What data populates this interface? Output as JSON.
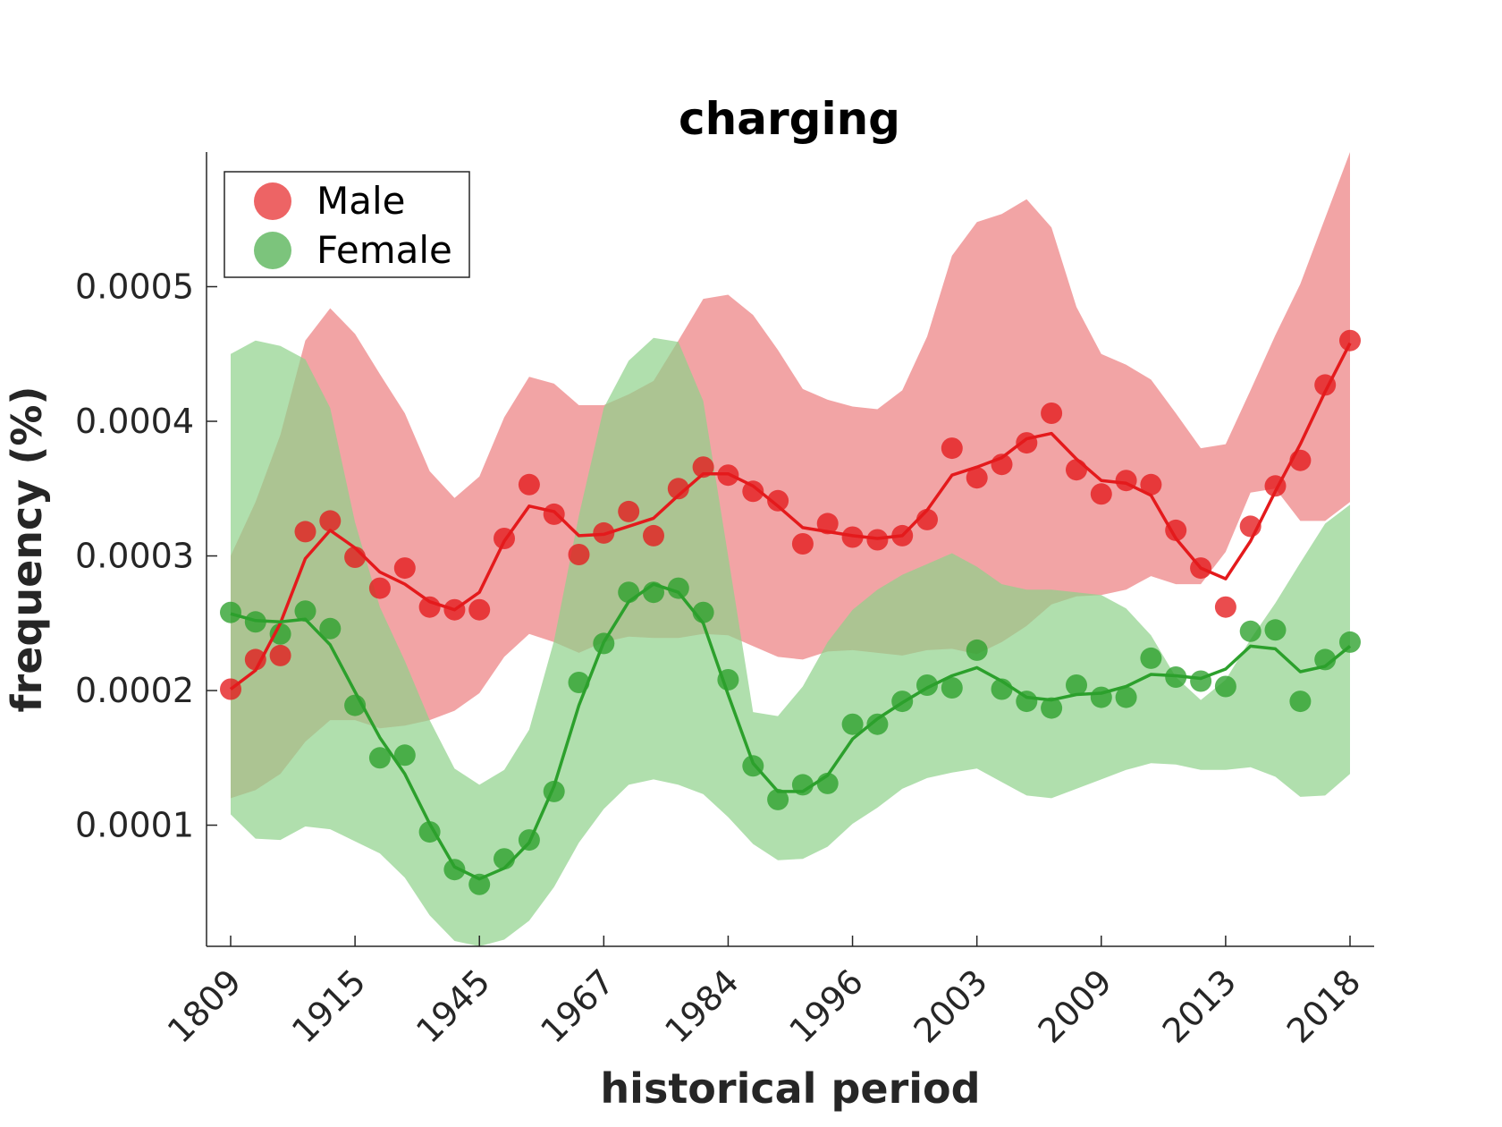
{
  "chart_data": {
    "type": "line",
    "title": "charging",
    "xlabel": "historical period",
    "ylabel": "frequency (%)",
    "x_tick_labels": [
      "1809",
      "1915",
      "1945",
      "1967",
      "1984",
      "1996",
      "2003",
      "2009",
      "2013",
      "2018"
    ],
    "x_tick_positions": [
      0,
      5,
      10,
      15,
      20,
      25,
      30,
      35,
      40,
      45
    ],
    "y_ticks": [
      0.0001,
      0.0002,
      0.0003,
      0.0004,
      0.0005
    ],
    "y_tick_labels": [
      "0.0001",
      "0.0002",
      "0.0003",
      "0.0004",
      "0.0005"
    ],
    "ylim": [
      1e-05,
      0.0006
    ],
    "xlim": [
      -1,
      46
    ],
    "legend_position": "top-left",
    "grid": false,
    "series": [
      {
        "name": "Male",
        "color": "#e41a1c",
        "band_color": "#ee8b8c",
        "points": [
          0.000201,
          0.000223,
          0.000226,
          0.000318,
          0.000326,
          0.000299,
          0.000276,
          0.000291,
          0.000262,
          0.00026,
          0.00026,
          0.000313,
          0.000353,
          0.000331,
          0.000301,
          0.000317,
          0.000333,
          0.000315,
          0.00035,
          0.000366,
          0.00036,
          0.000348,
          0.000341,
          0.000309,
          0.000324,
          0.000314,
          0.000312,
          0.000315,
          0.000327,
          0.00038,
          0.000358,
          0.000368,
          0.000384,
          0.000406,
          0.000364,
          0.000346,
          0.000356,
          0.000353,
          0.000319,
          0.000291,
          0.000262,
          0.000322,
          0.000352,
          0.000371,
          0.000427,
          0.00046
        ],
        "smooth": [
          0.000201,
          0.000215,
          0.00025,
          0.000298,
          0.000319,
          0.000306,
          0.000288,
          0.000279,
          0.000266,
          0.00026,
          0.000273,
          0.000311,
          0.000337,
          0.000333,
          0.000315,
          0.000316,
          0.000322,
          0.000328,
          0.000345,
          0.000361,
          0.000361,
          0.000352,
          0.000337,
          0.000321,
          0.000318,
          0.000315,
          0.000313,
          0.000315,
          0.000334,
          0.00036,
          0.000366,
          0.000373,
          0.000387,
          0.000391,
          0.000372,
          0.000356,
          0.000354,
          0.000345,
          0.000313,
          0.000291,
          0.000283,
          0.000311,
          0.000348,
          0.000383,
          0.000422,
          0.000458
        ],
        "band_upper": [
          0.0003,
          0.00034,
          0.00039,
          0.00046,
          0.000484,
          0.000465,
          0.000435,
          0.000406,
          0.000363,
          0.000343,
          0.000359,
          0.000403,
          0.000433,
          0.000428,
          0.000412,
          0.000412,
          0.00042,
          0.00043,
          0.00046,
          0.000491,
          0.000494,
          0.000479,
          0.000453,
          0.000424,
          0.000416,
          0.000411,
          0.000409,
          0.000423,
          0.000463,
          0.000523,
          0.000548,
          0.000554,
          0.000565,
          0.000544,
          0.000485,
          0.00045,
          0.000442,
          0.000431,
          0.000406,
          0.00038,
          0.000383,
          0.000423,
          0.000464,
          0.000502,
          0.000551,
          0.0006
        ],
        "band_lower": [
          0.00012,
          0.000126,
          0.000138,
          0.000162,
          0.000178,
          0.000178,
          0.000172,
          0.000174,
          0.000178,
          0.000185,
          0.000198,
          0.000225,
          0.000242,
          0.000236,
          0.000228,
          0.000236,
          0.00024,
          0.000239,
          0.000239,
          0.000242,
          0.000241,
          0.000233,
          0.000225,
          0.000223,
          0.000229,
          0.00023,
          0.000228,
          0.000226,
          0.00023,
          0.000231,
          0.000227,
          0.000236,
          0.000248,
          0.000264,
          0.00027,
          0.000271,
          0.000275,
          0.000285,
          0.000279,
          0.000279,
          0.000303,
          0.000347,
          0.00035,
          0.000326,
          0.000326,
          0.00034
        ]
      },
      {
        "name": "Female",
        "color": "#2ca02c",
        "band_color": "#8fd28a",
        "points": [
          0.000258,
          0.000251,
          0.000242,
          0.000259,
          0.000246,
          0.000189,
          0.00015,
          0.000152,
          9.5e-05,
          6.7e-05,
          5.6e-05,
          7.5e-05,
          8.9e-05,
          0.000125,
          0.000206,
          0.000235,
          0.000273,
          0.000273,
          0.000276,
          0.000258,
          0.000208,
          0.000144,
          0.000119,
          0.00013,
          0.000131,
          0.000175,
          0.000175,
          0.000192,
          0.000204,
          0.000202,
          0.00023,
          0.000201,
          0.000192,
          0.000187,
          0.000204,
          0.000195,
          0.000195,
          0.000224,
          0.00021,
          0.000207,
          0.000203,
          0.000244,
          0.000245,
          0.000192,
          0.000223,
          0.000236
        ],
        "smooth": [
          0.000257,
          0.000252,
          0.000251,
          0.000253,
          0.000234,
          0.000199,
          0.000165,
          0.000138,
          0.000101,
          6.9e-05,
          6e-05,
          6.8e-05,
          8.7e-05,
          0.000129,
          0.000189,
          0.000236,
          0.000266,
          0.000279,
          0.000273,
          0.00025,
          0.000197,
          0.000146,
          0.000125,
          0.000125,
          0.000137,
          0.000164,
          0.000179,
          0.000191,
          0.000202,
          0.000211,
          0.000217,
          0.000207,
          0.000195,
          0.000193,
          0.000197,
          0.000198,
          0.000203,
          0.000212,
          0.000211,
          0.000209,
          0.000216,
          0.000233,
          0.000231,
          0.000214,
          0.000218,
          0.000233
        ],
        "band_upper": [
          0.00045,
          0.00046,
          0.000456,
          0.000446,
          0.00041,
          0.000325,
          0.000262,
          0.000222,
          0.000178,
          0.000142,
          0.00013,
          0.000141,
          0.000171,
          0.000237,
          0.00033,
          0.00041,
          0.000445,
          0.000462,
          0.000459,
          0.000415,
          0.0003,
          0.000184,
          0.000181,
          0.000203,
          0.000236,
          0.00026,
          0.000275,
          0.000286,
          0.000294,
          0.000302,
          0.000292,
          0.000279,
          0.000275,
          0.000275,
          0.000273,
          0.000271,
          0.000261,
          0.000241,
          0.00021,
          0.000193,
          0.000208,
          0.000238,
          0.000265,
          0.000295,
          0.000324,
          0.000338
        ],
        "band_lower": [
          0.000108,
          9e-05,
          8.9e-05,
          9.9e-05,
          9.7e-05,
          8.8e-05,
          7.9e-05,
          6.1e-05,
          3.3e-05,
          1.4e-05,
          1e-05,
          1.5e-05,
          2.9e-05,
          5.4e-05,
          8.7e-05,
          0.000112,
          0.00013,
          0.000134,
          0.00013,
          0.000123,
          0.000106,
          8.6e-05,
          7.4e-05,
          7.5e-05,
          8.4e-05,
          0.000101,
          0.000113,
          0.000127,
          0.000135,
          0.000139,
          0.000142,
          0.000132,
          0.000122,
          0.00012,
          0.000127,
          0.000134,
          0.000141,
          0.000146,
          0.000145,
          0.000141,
          0.000141,
          0.000143,
          0.000136,
          0.000121,
          0.000122,
          0.000138
        ]
      }
    ]
  }
}
